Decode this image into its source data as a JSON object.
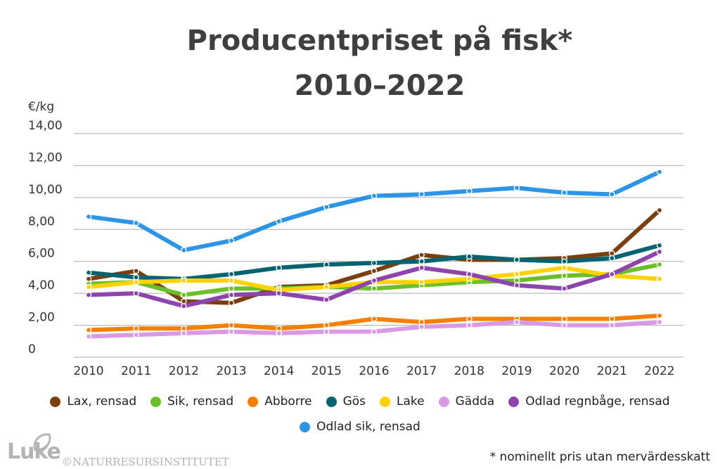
{
  "chart_data": {
    "type": "line",
    "title": "Producentpriset på fisk* 2010–2022",
    "ylabel": "€/kg",
    "xlabel": "",
    "ylim": [
      0,
      14
    ],
    "grid": true,
    "legend_position": "bottom",
    "y_ticks": [
      "0",
      "2,00",
      "4,00",
      "6,00",
      "8,00",
      "10,00",
      "12,00",
      "14,00"
    ],
    "x": [
      "2010",
      "2011",
      "2012",
      "2013",
      "2014",
      "2015",
      "2016",
      "2017",
      "2018",
      "2019",
      "2020",
      "2021",
      "2022"
    ],
    "series": [
      {
        "name": "Lax, rensad",
        "color": "#7b3f0f",
        "values": [
          4.9,
          5.4,
          3.5,
          3.4,
          4.4,
          4.5,
          5.4,
          6.4,
          6.1,
          6.1,
          6.2,
          6.5,
          9.2
        ]
      },
      {
        "name": "Sik, rensad",
        "color": "#6cbf2b",
        "values": [
          4.6,
          4.7,
          3.9,
          4.3,
          4.3,
          4.4,
          4.3,
          4.5,
          4.7,
          4.8,
          5.1,
          5.2,
          5.8
        ]
      },
      {
        "name": "Abborre",
        "color": "#f77f00",
        "values": [
          1.7,
          1.8,
          1.8,
          2.0,
          1.8,
          2.0,
          2.4,
          2.2,
          2.4,
          2.4,
          2.4,
          2.4,
          2.6
        ]
      },
      {
        "name": "Gös",
        "color": "#006470",
        "values": [
          5.3,
          5.0,
          4.9,
          5.2,
          5.6,
          5.8,
          5.9,
          6.0,
          6.3,
          6.1,
          6.0,
          6.2,
          7.0
        ]
      },
      {
        "name": "Lake",
        "color": "#ffd200",
        "values": [
          4.4,
          4.7,
          4.8,
          4.8,
          4.2,
          4.4,
          4.7,
          4.7,
          4.9,
          5.2,
          5.6,
          5.1,
          4.9
        ]
      },
      {
        "name": "Gädda",
        "color": "#d99ae3",
        "values": [
          1.3,
          1.4,
          1.5,
          1.6,
          1.5,
          1.6,
          1.6,
          1.9,
          2.0,
          2.2,
          2.0,
          2.0,
          2.2
        ]
      },
      {
        "name": "Odlad regnbåge, rensad",
        "color": "#8e44ad",
        "values": [
          3.9,
          4.0,
          3.2,
          3.9,
          4.0,
          3.6,
          4.8,
          5.6,
          5.2,
          4.5,
          4.3,
          5.2,
          6.6
        ]
      },
      {
        "name": "Odlad sik, rensad",
        "color": "#2d95e5",
        "values": [
          8.8,
          8.4,
          6.7,
          7.3,
          8.5,
          9.4,
          10.1,
          10.2,
          10.4,
          10.6,
          10.3,
          10.2,
          11.6
        ]
      }
    ]
  },
  "footnote": "* nominellt pris utan mervärdesskatt",
  "logo": {
    "word": "Luke",
    "copyright": "©NATURRESURSINSTITUTET"
  }
}
